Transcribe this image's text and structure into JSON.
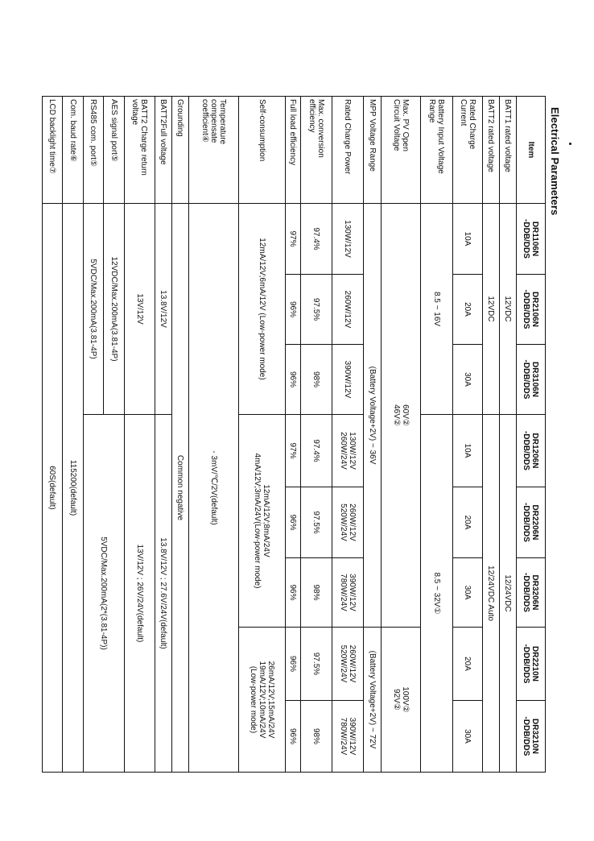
{
  "document": {
    "title": "Electrical Parameters",
    "header": [
      "Item",
      "DR1106N\n-DDB/DDS",
      "DR2106N\n-DDB/DDS",
      "DR3106N\n-DDB/DDS",
      "DR1206N\n-DDB/DDS",
      "DR2206N\n-DDB/DDS",
      "DR3206N\n-DDB/DDS",
      "DR2210N\n-DDB/DDS",
      "DR3210N\n-DDB/DDS"
    ],
    "rows": [
      {
        "label": "BATT1 rated voltage",
        "cells": [
          {
            "text": "12VDC",
            "colspan": 3
          },
          {
            "text": "12/24VDC",
            "colspan": 5
          }
        ]
      },
      {
        "label": "BATT2 rated voltage",
        "cells": [
          {
            "text": "12VDC",
            "colspan": 3
          },
          {
            "text": "12/24VDC Auto",
            "colspan": 5
          }
        ]
      },
      {
        "label": "Rated Charge\nCurrent",
        "cells": [
          {
            "text": "10A"
          },
          {
            "text": "20A"
          },
          {
            "text": "30A"
          },
          {
            "text": "10A"
          },
          {
            "text": "20A"
          },
          {
            "text": "30A"
          },
          {
            "text": "20A"
          },
          {
            "text": "30A"
          }
        ]
      },
      {
        "label": "Battery Input Voltage\nRange",
        "cells": [
          {
            "text": "8.5 ~ 16V",
            "colspan": 3
          },
          {
            "text": "8.5 ~ 32V①",
            "colspan": 5
          }
        ]
      },
      {
        "label": "Max. PV Open\nCircuit Voltage",
        "cells": [
          {
            "text": "60V②\n46V②",
            "colspan": 6
          },
          {
            "text": "100V②\n92V②",
            "colspan": 2
          }
        ]
      },
      {
        "label": "MPP Voltage Range",
        "cells": [
          {
            "text": "(Battery Voltage+2V) ~ 36V",
            "colspan": 6
          },
          {
            "text": "(Battery Voltage+2V) ~ 72V",
            "colspan": 2
          }
        ]
      },
      {
        "label": "Rated Charge Power",
        "cells": [
          {
            "text": "130W/12V"
          },
          {
            "text": "260W/12V"
          },
          {
            "text": "390W/12V"
          },
          {
            "text": "130W/12V\n260W/24V"
          },
          {
            "text": "260W/12V\n520W/24V"
          },
          {
            "text": "390W/12V\n780W/24V"
          },
          {
            "text": "260W/12V\n520W/24V"
          },
          {
            "text": "390W/12V\n780W/24V"
          }
        ]
      },
      {
        "label": "Max. conversion\nefficiency",
        "cells": [
          {
            "text": "97.4%"
          },
          {
            "text": "97.5%"
          },
          {
            "text": "98%"
          },
          {
            "text": "97.4%"
          },
          {
            "text": "97.5%"
          },
          {
            "text": "98%"
          },
          {
            "text": "97.5%"
          },
          {
            "text": "98%"
          }
        ]
      },
      {
        "label": "Full load efficiency",
        "cells": [
          {
            "text": "97%"
          },
          {
            "text": "96%"
          },
          {
            "text": "96%"
          },
          {
            "text": "97%"
          },
          {
            "text": "96%"
          },
          {
            "text": "96%"
          },
          {
            "text": "96%"
          },
          {
            "text": "96%"
          }
        ]
      },
      {
        "label": "Self-consumption",
        "cells": [
          {
            "text": "12mA/12V;6mA/12V (Low-power mode)",
            "colspan": 3
          },
          {
            "text": "12mA/12V;8mA/24V\n4mA/12V;3mA/24V(Low-power mode)",
            "colspan": 3
          },
          {
            "text": "26mA/12V;15mA/24V\n19mA/12V;10mA/24V\n(Low-power mode)",
            "colspan": 2
          }
        ]
      },
      {
        "label": "Temperature\ncompensate\ncoefficient④",
        "cells": [
          {
            "text": "- 3mV/℃/2V(default)",
            "colspan": 8
          }
        ]
      },
      {
        "label": "Grounding",
        "cells": [
          {
            "text": "Common negative",
            "colspan": 8
          }
        ]
      },
      {
        "label": "BATT2Full voltage",
        "cells": [
          {
            "text": "13.8V/12V",
            "colspan": 3
          },
          {
            "text": "13.8V/12V ; 27.6V/24V(default)",
            "colspan": 5
          }
        ]
      },
      {
        "label": "BATT2 Charge return\nvoltage",
        "cells": [
          {
            "text": "13V/12V",
            "colspan": 3
          },
          {
            "text": "13V/12V ; 26V/24V(default)",
            "colspan": 5
          }
        ]
      },
      {
        "label": "AES signal port⑤",
        "cells": [
          {
            "text": "12VDC/Max.200mA(3.81-4P)",
            "colspan": 3
          },
          {
            "text": "5VDC/Max.200mA(2*(3.81-4P))",
            "colspan": 5,
            "rowspan": 2
          }
        ]
      },
      {
        "label": "RS485 com. port⑤",
        "cells": [
          {
            "text": "5VDC/Max.200mA(3.81-4P)",
            "colspan": 3
          }
        ]
      },
      {
        "label": "Com. baud rate⑥",
        "cells": [
          {
            "text": "115200(default)",
            "colspan": 8
          }
        ]
      },
      {
        "label": "LCD backlight time⑦",
        "cells": [
          {
            "text": "60S(default)",
            "colspan": 8
          }
        ]
      }
    ]
  }
}
